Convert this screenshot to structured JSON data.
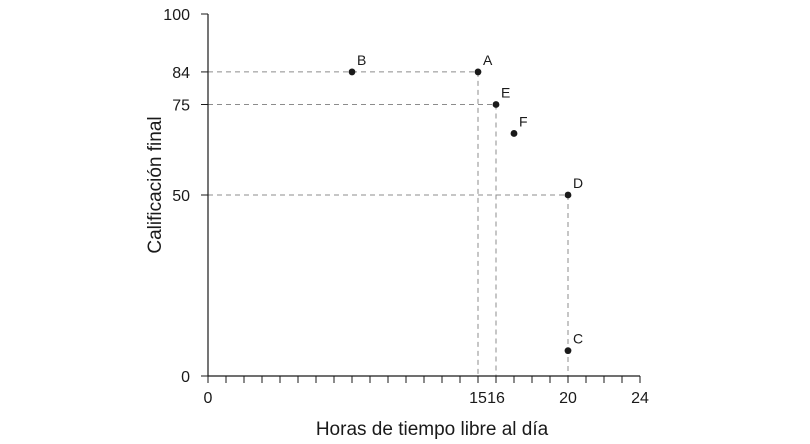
{
  "chart_data": {
    "type": "scatter",
    "xlabel": "Horas de tiempo libre al día",
    "ylabel": "Calificación final",
    "xlim": [
      0,
      24
    ],
    "ylim": [
      0,
      100
    ],
    "x_ticks_labeled": [
      0,
      15,
      16,
      20,
      24
    ],
    "y_ticks_labeled": [
      0,
      50,
      75,
      84,
      100
    ],
    "x_minor_step": 1,
    "grid": false,
    "points": [
      {
        "label": "A",
        "x": 15,
        "y": 84
      },
      {
        "label": "B",
        "x": 8,
        "y": 84
      },
      {
        "label": "C",
        "x": 20,
        "y": 7
      },
      {
        "label": "D",
        "x": 20,
        "y": 50
      },
      {
        "label": "E",
        "x": 16,
        "y": 75
      },
      {
        "label": "F",
        "x": 17,
        "y": 67
      }
    ],
    "guides": [
      {
        "point": "A",
        "to_x_axis": true,
        "to_y_axis": true
      },
      {
        "point": "E",
        "to_x_axis": true,
        "to_y_axis": true
      },
      {
        "point": "D",
        "to_x_axis": true,
        "to_y_axis": true
      }
    ]
  }
}
